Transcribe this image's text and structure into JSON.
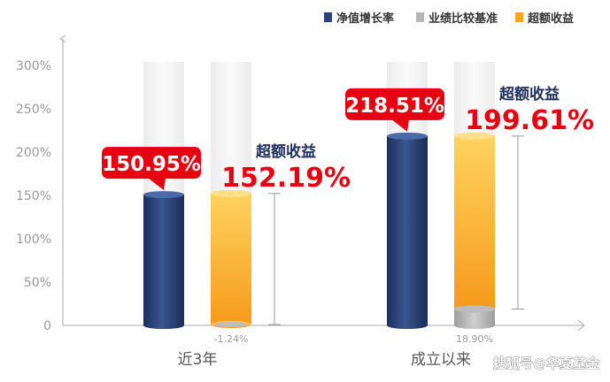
{
  "chart_data": {
    "type": "bar",
    "title": "",
    "xlabel": "",
    "ylabel": "",
    "ylim": [
      0,
      300
    ],
    "yticks": [
      "0",
      "50%",
      "100%",
      "150%",
      "200%",
      "250%",
      "300%"
    ],
    "categories": [
      "近3年",
      "成立以来"
    ],
    "legend_position": "top-right",
    "series": [
      {
        "name": "净值增长率",
        "values": [
          150.95,
          218.51
        ],
        "labels": [
          "150.95%",
          "218.51%"
        ],
        "color": "#2b4478"
      },
      {
        "name": "业绩比较基准",
        "values": [
          -1.24,
          18.9
        ],
        "labels": [
          "-1.24%",
          "18.90%"
        ],
        "color": "#b5b5b5"
      },
      {
        "name": "超额收益",
        "values": [
          152.19,
          199.61
        ],
        "labels": [
          "152.19%",
          "199.61%"
        ],
        "color": "#f6a623"
      }
    ],
    "annotations": [
      {
        "category": "近3年",
        "title": "超额收益",
        "value": "152.19%"
      },
      {
        "category": "成立以来",
        "title": "超额收益",
        "value": "199.61%"
      }
    ],
    "colors": {
      "callout_bg": "#e60012",
      "callout_text": "#ffffff",
      "annotation_title": "#1e2d5c",
      "annotation_value": "#e60012",
      "axis": "#aaaaaa",
      "tick_text": "#999999"
    }
  },
  "watermark": {
    "text": "搜狐号@华夏基金"
  }
}
